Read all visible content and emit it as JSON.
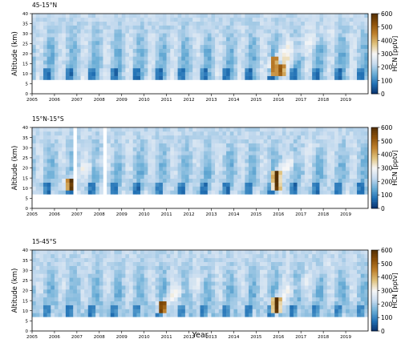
{
  "chart_data": [
    {
      "type": "heatmap",
      "title": "45-15°N",
      "xlabel": "",
      "ylabel": "Altitude (km)",
      "colorbar_label": "HCN [pptv]",
      "xlim": [
        2005,
        2020
      ],
      "ylim": [
        0,
        40
      ],
      "x_ticks": [
        "2005",
        "2006",
        "2007",
        "2008",
        "2009",
        "2010",
        "2011",
        "2012",
        "2013",
        "2014",
        "2015",
        "2016",
        "2017",
        "2018",
        "2019"
      ],
      "y_ticks": [
        "0",
        "5",
        "10",
        "15",
        "20",
        "25",
        "30",
        "35",
        "40"
      ],
      "colorbar_ticks": [
        "0",
        "100",
        "200",
        "300",
        "400",
        "500",
        "600"
      ],
      "clim": [
        0,
        600
      ],
      "colormap": [
        "#08306b",
        "#2171b5",
        "#6baed6",
        "#c6dbef",
        "#f7f7f7",
        "#dfc27d",
        "#bf812d",
        "#8c510a",
        "#543005"
      ],
      "data_floor_km": 7,
      "gaps": [],
      "events": [
        {
          "year": 2015.8,
          "alt_low": 9,
          "alt_high": 18,
          "value": 470
        },
        {
          "year": 2016.1,
          "alt_low": 8,
          "alt_high": 15,
          "value": 520
        }
      ]
    },
    {
      "type": "heatmap",
      "title": "15°N-15°S",
      "xlabel": "",
      "ylabel": "Altitude (km)",
      "colorbar_label": "HCN [pptv]",
      "xlim": [
        2005,
        2020
      ],
      "ylim": [
        0,
        40
      ],
      "x_ticks": [
        "2005",
        "2006",
        "2007",
        "2008",
        "2009",
        "2010",
        "2011",
        "2012",
        "2013",
        "2014",
        "2015",
        "2016",
        "2017",
        "2018",
        "2019"
      ],
      "y_ticks": [
        "0",
        "5",
        "10",
        "15",
        "20",
        "25",
        "30",
        "35",
        "40"
      ],
      "colorbar_ticks": [
        "0",
        "100",
        "200",
        "300",
        "400",
        "500",
        "600"
      ],
      "clim": [
        0,
        600
      ],
      "colormap": [
        "#08306b",
        "#2171b5",
        "#6baed6",
        "#c6dbef",
        "#f7f7f7",
        "#dfc27d",
        "#bf812d",
        "#8c510a",
        "#543005"
      ],
      "data_floor_km": 7,
      "gaps": [
        [
          2006.85,
          2007.0
        ],
        [
          2008.2,
          2008.35
        ]
      ],
      "events": [
        {
          "year": 2006.7,
          "alt_low": 9,
          "alt_high": 15,
          "value": 600
        },
        {
          "year": 2015.9,
          "alt_low": 8,
          "alt_high": 18,
          "value": 600
        }
      ]
    },
    {
      "type": "heatmap",
      "title": "15-45°S",
      "xlabel": "Year",
      "ylabel": "Altitude (km)",
      "colorbar_label": "HCN [pptv]",
      "xlim": [
        2005,
        2020
      ],
      "ylim": [
        0,
        40
      ],
      "x_ticks": [
        "2005",
        "2006",
        "2007",
        "2008",
        "2009",
        "2010",
        "2011",
        "2012",
        "2013",
        "2014",
        "2015",
        "2016",
        "2017",
        "2018",
        "2019"
      ],
      "y_ticks": [
        "0",
        "5",
        "10",
        "15",
        "20",
        "25",
        "30",
        "35",
        "40"
      ],
      "colorbar_ticks": [
        "0",
        "100",
        "200",
        "300",
        "400",
        "500",
        "600"
      ],
      "clim": [
        0,
        600
      ],
      "colormap": [
        "#08306b",
        "#2171b5",
        "#6baed6",
        "#c6dbef",
        "#f7f7f7",
        "#dfc27d",
        "#bf812d",
        "#8c510a",
        "#543005"
      ],
      "data_floor_km": 7,
      "gaps": [],
      "events": [
        {
          "year": 2010.8,
          "alt_low": 8,
          "alt_high": 14,
          "value": 580
        },
        {
          "year": 2015.9,
          "alt_low": 8,
          "alt_high": 16,
          "value": 600
        }
      ]
    }
  ]
}
